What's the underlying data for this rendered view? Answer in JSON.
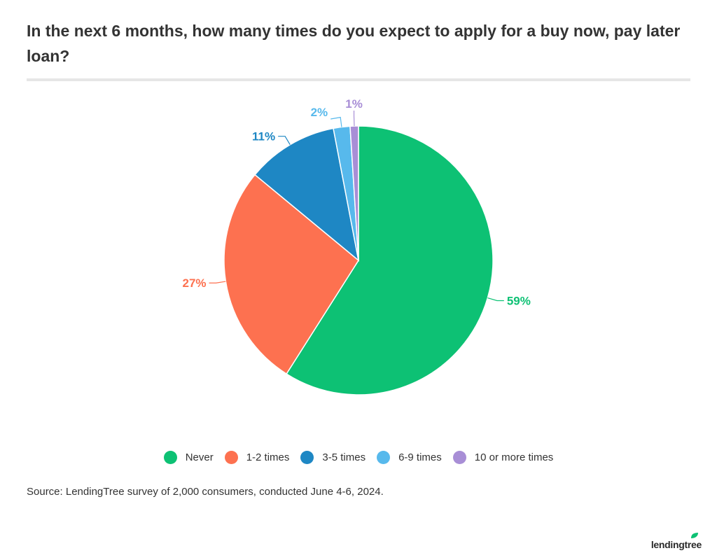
{
  "title": "In the next 6 months, how many times do you expect to apply for a buy now, pay later loan?",
  "source": "Source: LendingTree survey of 2,000 consumers, conducted June 4-6, 2024.",
  "brand": "lendingtree",
  "colors": {
    "never": "#0dc174",
    "one_two": "#fd7150",
    "three_five": "#1e87c4",
    "six_nine": "#57b9ec",
    "ten_plus": "#a88ed6",
    "brand_leaf": "#0dc174"
  },
  "chart_data": {
    "type": "pie",
    "title": "In the next 6 months, how many times do you expect to apply for a buy now, pay later loan?",
    "legend_position": "bottom",
    "slices": [
      {
        "name": "Never",
        "value": 59,
        "label": "59%",
        "color": "#0dc174"
      },
      {
        "name": "1-2 times",
        "value": 27,
        "label": "27%",
        "color": "#fd7150"
      },
      {
        "name": "3-5 times",
        "value": 11,
        "label": "11%",
        "color": "#1e87c4"
      },
      {
        "name": "6-9 times",
        "value": 2,
        "label": "2%",
        "color": "#57b9ec"
      },
      {
        "name": "10 or more times",
        "value": 1,
        "label": "1%",
        "color": "#a88ed6"
      }
    ]
  },
  "legend": [
    {
      "label": "Never",
      "color": "#0dc174"
    },
    {
      "label": "1-2 times",
      "color": "#fd7150"
    },
    {
      "label": "3-5 times",
      "color": "#1e87c4"
    },
    {
      "label": "6-9 times",
      "color": "#57b9ec"
    },
    {
      "label": "10 or more times",
      "color": "#a88ed6"
    }
  ]
}
